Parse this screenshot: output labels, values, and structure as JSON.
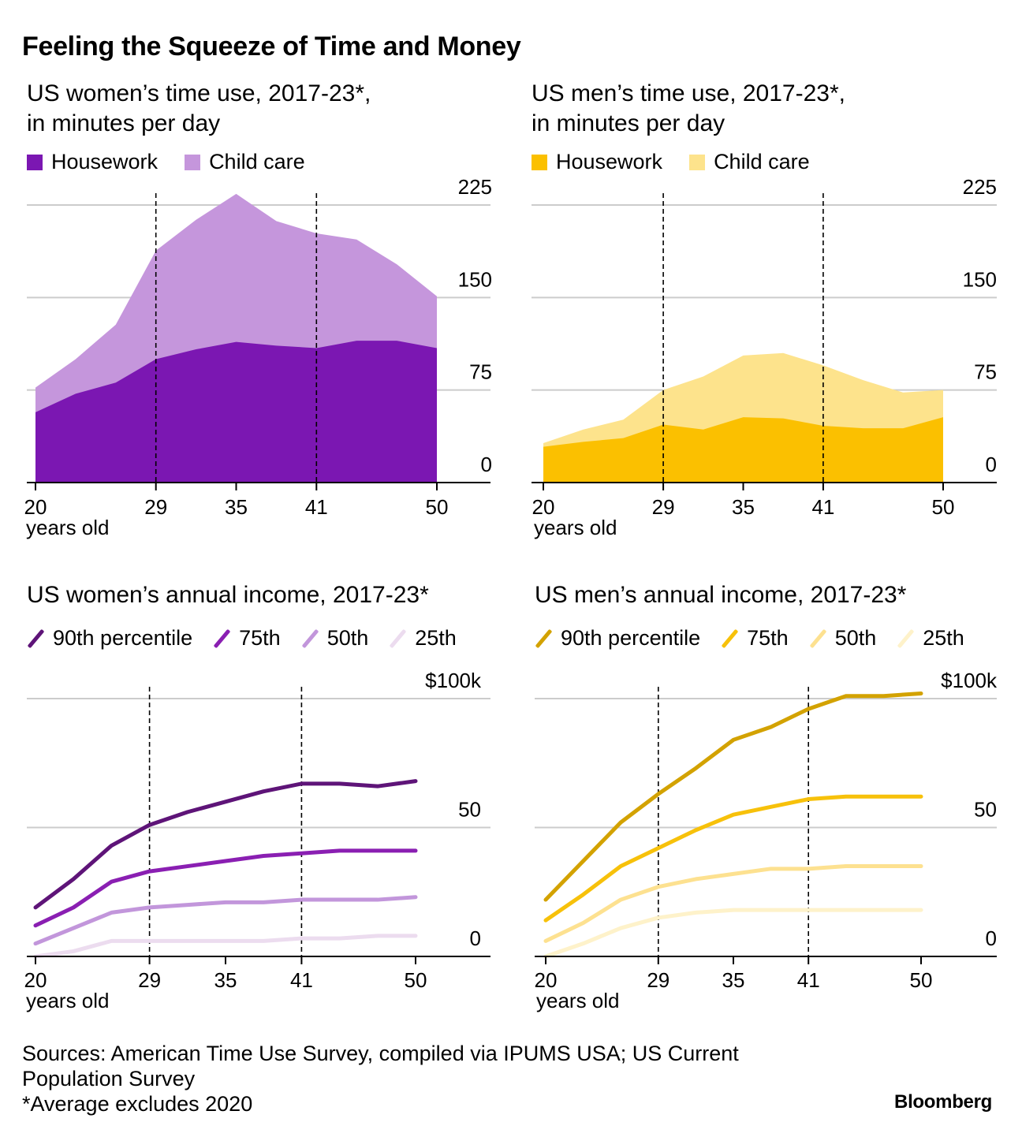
{
  "main_title": "Feeling the Squeeze of Time and Money",
  "footer": {
    "source_line1": "Sources: American Time Use Survey, compiled via IPUMS USA; US Current",
    "source_line2": "Population Survey",
    "note": "*Average excludes 2020"
  },
  "brand": "Bloomberg",
  "colors": {
    "women_housework": "#7b17b2",
    "women_childcare": "#c596dc",
    "men_housework": "#fbc000",
    "men_childcare": "#fde38c",
    "women_p90": "#5e1478",
    "women_p75": "#8a1fb2",
    "women_p50": "#c296db",
    "women_p25": "#ecdcef",
    "men_p90": "#d3a200",
    "men_p75": "#f7c10a",
    "men_p50": "#fde190",
    "men_p25": "#fef2ca"
  },
  "chart_data": [
    {
      "id": "women_time",
      "type": "area",
      "stacked": true,
      "title_line1": "US women’s time use, 2017-23*,",
      "title_line2": "in minutes per day",
      "x": [
        20,
        23,
        26,
        29,
        32,
        35,
        38,
        41,
        44,
        47,
        50
      ],
      "xticks": [
        "20",
        "29",
        "35",
        "41",
        "50"
      ],
      "xtick_values": [
        20,
        29,
        35,
        41,
        50
      ],
      "xlabel": "years old",
      "xlim": [
        20,
        54
      ],
      "yticks": [
        "225",
        "150",
        "75",
        "0"
      ],
      "ytick_values": [
        225,
        150,
        75,
        0
      ],
      "ylim": [
        0,
        225
      ],
      "vlines": [
        29,
        41
      ],
      "series": [
        {
          "name": "Housework",
          "color_key": "women_housework",
          "values": [
            57,
            72,
            81,
            100,
            108,
            114,
            111,
            109,
            115,
            115,
            109
          ]
        },
        {
          "name": "Child care",
          "color_key": "women_childcare",
          "values": [
            20,
            28,
            47,
            88,
            105,
            120,
            101,
            93,
            82,
            62,
            42
          ]
        }
      ]
    },
    {
      "id": "men_time",
      "type": "area",
      "stacked": true,
      "title_line1": "US men’s time use, 2017-23*,",
      "title_line2": "in minutes per day",
      "x": [
        20,
        23,
        26,
        29,
        32,
        35,
        38,
        41,
        44,
        47,
        50
      ],
      "xticks": [
        "20",
        "29",
        "35",
        "41",
        "50"
      ],
      "xtick_values": [
        20,
        29,
        35,
        41,
        50
      ],
      "xlabel": "years old",
      "xlim": [
        20,
        54
      ],
      "yticks": [
        "225",
        "150",
        "75",
        "0"
      ],
      "ytick_values": [
        225,
        150,
        75,
        0
      ],
      "ylim": [
        0,
        225
      ],
      "vlines": [
        29,
        41
      ],
      "series": [
        {
          "name": "Housework",
          "color_key": "men_housework",
          "values": [
            29,
            33,
            36,
            47,
            43,
            53,
            52,
            46,
            44,
            44,
            53
          ]
        },
        {
          "name": "Child care",
          "color_key": "men_childcare",
          "values": [
            3,
            10,
            15,
            28,
            43,
            50,
            53,
            49,
            39,
            29,
            22
          ]
        }
      ]
    },
    {
      "id": "women_income",
      "type": "line",
      "title_line1": "US women’s annual income, 2017-23*",
      "x": [
        20,
        23,
        26,
        29,
        32,
        35,
        38,
        41,
        44,
        47,
        50
      ],
      "xticks": [
        "20",
        "29",
        "35",
        "41",
        "50"
      ],
      "xtick_values": [
        20,
        29,
        35,
        41,
        50
      ],
      "xlabel": "years old",
      "xlim": [
        20,
        56
      ],
      "yticks": [
        "$100k",
        "50",
        "0"
      ],
      "ytick_values": [
        100,
        50,
        0
      ],
      "ylim": [
        0,
        100
      ],
      "vlines": [
        29,
        41
      ],
      "series": [
        {
          "name": "90th percentile",
          "color_key": "women_p90",
          "values": [
            19,
            30,
            43,
            51,
            56,
            60,
            64,
            67,
            67,
            66,
            68
          ]
        },
        {
          "name": "75th",
          "color_key": "women_p75",
          "values": [
            12,
            19,
            29,
            33,
            35,
            37,
            39,
            40,
            41,
            41,
            41
          ]
        },
        {
          "name": "50th",
          "color_key": "women_p50",
          "values": [
            5,
            11,
            17,
            19,
            20,
            21,
            21,
            22,
            22,
            22,
            23
          ]
        },
        {
          "name": "25th",
          "color_key": "women_p25",
          "values": [
            0,
            2,
            6,
            6,
            6,
            6,
            6,
            7,
            7,
            8,
            8
          ]
        }
      ]
    },
    {
      "id": "men_income",
      "type": "line",
      "title_line1": "US men’s annual income, 2017-23*",
      "x": [
        20,
        23,
        26,
        29,
        32,
        35,
        38,
        41,
        44,
        47,
        50
      ],
      "xticks": [
        "20",
        "29",
        "35",
        "41",
        "50"
      ],
      "xtick_values": [
        20,
        29,
        35,
        41,
        50
      ],
      "xlabel": "years old",
      "xlim": [
        20,
        56
      ],
      "yticks": [
        "$100k",
        "50",
        "0"
      ],
      "ytick_values": [
        100,
        50,
        0
      ],
      "ylim": [
        0,
        100
      ],
      "vlines": [
        29,
        41
      ],
      "series": [
        {
          "name": "90th percentile",
          "color_key": "men_p90",
          "values": [
            22,
            37,
            52,
            63,
            73,
            84,
            89,
            96,
            101,
            101,
            102
          ]
        },
        {
          "name": "75th",
          "color_key": "men_p75",
          "values": [
            14,
            24,
            35,
            42,
            49,
            55,
            58,
            61,
            62,
            62,
            62
          ]
        },
        {
          "name": "50th",
          "color_key": "men_p50",
          "values": [
            6,
            13,
            22,
            27,
            30,
            32,
            34,
            34,
            35,
            35,
            35
          ]
        },
        {
          "name": "25th",
          "color_key": "men_p25",
          "values": [
            0,
            5,
            11,
            15,
            17,
            18,
            18,
            18,
            18,
            18,
            18
          ]
        }
      ]
    }
  ]
}
